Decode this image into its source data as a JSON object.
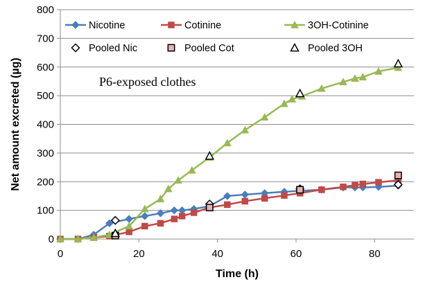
{
  "chart_data": {
    "type": "line",
    "title": "",
    "annotation": "P6-exposed clothes",
    "xlabel": "Time (h)",
    "ylabel": "Net amount excreted (µg)",
    "xlim": [
      0,
      90
    ],
    "ylim": [
      0,
      800
    ],
    "xticks": [
      "0",
      "20",
      "40",
      "60",
      "80"
    ],
    "yticks": [
      "0",
      "100",
      "200",
      "300",
      "400",
      "500",
      "600",
      "700",
      "800"
    ],
    "xtick_values": [
      0,
      20,
      40,
      60,
      80
    ],
    "ytick_values": [
      0,
      100,
      200,
      300,
      400,
      500,
      600,
      700,
      800
    ],
    "grid": "horizontal",
    "legend_position": "top",
    "series": [
      {
        "name": "Nicotine",
        "kind": "line",
        "marker": "diamond",
        "color": "#4a7ebb",
        "x": [
          0,
          4.5,
          8.5,
          12.5,
          17.5,
          21.5,
          25.5,
          29,
          31,
          34,
          38,
          42.5,
          47,
          52,
          57,
          61,
          66.5,
          72,
          75,
          77,
          81,
          86
        ],
        "y": [
          0,
          0,
          15,
          55,
          70,
          80,
          90,
          100,
          100,
          105,
          115,
          150,
          155,
          160,
          165,
          168,
          172,
          180,
          180,
          180,
          182,
          186
        ]
      },
      {
        "name": "Cotinine",
        "kind": "line",
        "marker": "square",
        "color": "#be4b48",
        "x": [
          0,
          4.5,
          8.5,
          12.5,
          17.5,
          21.5,
          25.5,
          29,
          31,
          34,
          38,
          42.5,
          47,
          52,
          57,
          61,
          66.5,
          72,
          75,
          77,
          81,
          86
        ],
        "y": [
          0,
          0,
          5,
          10,
          25,
          45,
          55,
          70,
          80,
          92,
          110,
          120,
          132,
          142,
          152,
          160,
          172,
          182,
          188,
          192,
          198,
          205
        ]
      },
      {
        "name": "3OH-Cotinine",
        "kind": "line",
        "marker": "triangle",
        "color": "#98b954",
        "x": [
          0,
          4.5,
          8.5,
          12.5,
          17.5,
          21.5,
          25.5,
          27.5,
          30,
          33.5,
          38,
          42.5,
          47,
          52,
          57,
          59,
          61.5,
          66.5,
          72,
          75,
          77,
          81,
          86
        ],
        "y": [
          0,
          0,
          5,
          15,
          45,
          105,
          140,
          175,
          205,
          240,
          285,
          335,
          380,
          425,
          472,
          488,
          498,
          525,
          548,
          560,
          565,
          585,
          598
        ]
      },
      {
        "name": "Pooled Nic",
        "kind": "scatter",
        "marker": "diamond",
        "color": "#ffffff",
        "x": [
          14,
          38,
          61,
          86
        ],
        "y": [
          65,
          122,
          175,
          190
        ]
      },
      {
        "name": "Pooled Cot",
        "kind": "scatter",
        "marker": "square",
        "color": "#e8b4b0",
        "x": [
          14,
          38,
          61,
          86
        ],
        "y": [
          12,
          110,
          172,
          222
        ]
      },
      {
        "name": "Pooled 3OH",
        "kind": "scatter",
        "marker": "triangle",
        "color": "#ffffff",
        "x": [
          14,
          38,
          61,
          86
        ],
        "y": [
          20,
          290,
          508,
          612
        ]
      }
    ]
  }
}
